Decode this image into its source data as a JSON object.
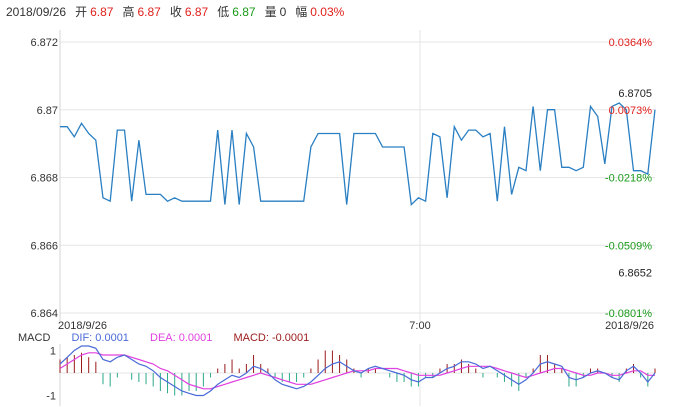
{
  "header": {
    "date": "2018/09/26",
    "fields": [
      {
        "label": "开",
        "value": "6.87",
        "color": "#e0201c"
      },
      {
        "label": "高",
        "value": "6.87",
        "color": "#e0201c"
      },
      {
        "label": "收",
        "value": "6.87",
        "color": "#e0201c"
      },
      {
        "label": "低",
        "value": "6.87",
        "color": "#1a9a1a"
      },
      {
        "label": "量",
        "value": "0",
        "color": "#333333"
      },
      {
        "label": "幅",
        "value": "0.03%",
        "color": "#e0201c"
      }
    ]
  },
  "colors": {
    "line": "#2a7fc2",
    "dif": "#4a6ad8",
    "dea": "#e040e0",
    "bar_up": "#9a1a1a",
    "bar_down": "#2aa88a",
    "grid": "#e6e6e6",
    "up": "#e0201c",
    "down": "#1a9a1a"
  },
  "chart_data": [
    {
      "type": "line",
      "title": "",
      "x_ticks": [
        "2018/9/26",
        "7:00",
        "2018/9/26"
      ],
      "y_ticks": [
        "6.872",
        "6.87",
        "6.868",
        "6.866",
        "6.864"
      ],
      "ylim": [
        6.864,
        6.872
      ],
      "right_ticks": [
        {
          "label": "0.0364%",
          "y": 6.872,
          "tone": "up"
        },
        {
          "label": "0.0073%",
          "y": 6.87,
          "tone": "up"
        },
        {
          "label": "-0.0218%",
          "y": 6.868,
          "tone": "down"
        },
        {
          "label": "-0.0509%",
          "y": 6.866,
          "tone": "down"
        },
        {
          "label": "-0.0801%",
          "y": 6.864,
          "tone": "down"
        }
      ],
      "markers": [
        {
          "label": "6.8705",
          "y": 6.8705
        },
        {
          "label": "6.8652",
          "y": 6.8652
        }
      ],
      "values": [
        6.8695,
        6.8695,
        6.8692,
        6.8696,
        6.8693,
        6.8691,
        6.8674,
        6.8673,
        6.8694,
        6.8694,
        6.8673,
        6.8691,
        6.8675,
        6.8675,
        6.8675,
        6.8673,
        6.8674,
        6.8673,
        6.8673,
        6.8673,
        6.8673,
        6.8673,
        6.8694,
        6.8672,
        6.8694,
        6.8672,
        6.8693,
        6.8689,
        6.8673,
        6.8673,
        6.8673,
        6.8673,
        6.8673,
        6.8673,
        6.8673,
        6.8689,
        6.8693,
        6.8693,
        6.8693,
        6.8693,
        6.8672,
        6.8693,
        6.8693,
        6.8693,
        6.8693,
        6.8689,
        6.8689,
        6.8689,
        6.8689,
        6.8672,
        6.8674,
        6.8673,
        6.8693,
        6.8692,
        6.8674,
        6.8695,
        6.8691,
        6.8694,
        6.8694,
        6.8692,
        6.8693,
        6.8673,
        6.8695,
        6.8675,
        6.8683,
        6.8682,
        6.8701,
        6.8682,
        6.87,
        6.87,
        6.8683,
        6.8683,
        6.8682,
        6.8683,
        6.8701,
        6.8698,
        6.8684,
        6.8701,
        6.8702,
        6.87,
        6.8682,
        6.8682,
        6.8681,
        6.87
      ]
    },
    {
      "type": "bar",
      "title": "MACD",
      "legend": {
        "dif": "DIF: 0.0001",
        "dea": "DEA: 0.0001",
        "macd": "MACD: -0.0001"
      },
      "y_ticks": [
        "1",
        "-1"
      ],
      "ylim": [
        -1.2,
        1.2
      ],
      "dif": [
        0.4,
        0.7,
        1.0,
        1.2,
        1.2,
        1.1,
        0.6,
        0.5,
        0.7,
        0.8,
        0.6,
        0.4,
        0.3,
        0.1,
        -0.2,
        -0.4,
        -0.6,
        -0.8,
        -0.9,
        -1.0,
        -1.0,
        -0.8,
        -0.5,
        -0.3,
        -0.1,
        -0.2,
        0.0,
        0.3,
        0.2,
        0.0,
        -0.3,
        -0.5,
        -0.6,
        -0.7,
        -0.6,
        -0.4,
        -0.1,
        0.2,
        0.4,
        0.5,
        0.3,
        0.1,
        0.0,
        0.2,
        0.3,
        0.2,
        0.1,
        0.0,
        -0.1,
        -0.3,
        -0.4,
        -0.2,
        -0.2,
        0.0,
        0.2,
        0.3,
        0.5,
        0.5,
        0.4,
        0.2,
        0.3,
        0.1,
        -0.1,
        -0.3,
        -0.5,
        -0.3,
        0.0,
        0.4,
        0.5,
        0.4,
        0.3,
        -0.2,
        -0.3,
        -0.2,
        0.0,
        0.1,
        0.0,
        -0.2,
        -0.3,
        0.1,
        0.3,
        0.0,
        -0.4,
        0.0
      ],
      "dea": [
        0.2,
        0.4,
        0.6,
        0.8,
        0.9,
        0.9,
        0.8,
        0.8,
        0.8,
        0.8,
        0.7,
        0.6,
        0.5,
        0.4,
        0.2,
        0.1,
        -0.1,
        -0.3,
        -0.5,
        -0.6,
        -0.7,
        -0.7,
        -0.6,
        -0.5,
        -0.4,
        -0.3,
        -0.2,
        -0.1,
        0.0,
        -0.1,
        -0.2,
        -0.3,
        -0.4,
        -0.5,
        -0.5,
        -0.5,
        -0.4,
        -0.3,
        -0.2,
        -0.1,
        0.0,
        0.1,
        0.1,
        0.1,
        0.2,
        0.2,
        0.2,
        0.2,
        0.1,
        0.0,
        -0.1,
        -0.1,
        -0.1,
        -0.1,
        0.0,
        0.1,
        0.2,
        0.3,
        0.3,
        0.3,
        0.3,
        0.2,
        0.1,
        0.0,
        -0.1,
        -0.2,
        -0.1,
        0.0,
        0.1,
        0.2,
        0.2,
        0.1,
        0.0,
        -0.1,
        -0.1,
        0.0,
        0.0,
        -0.1,
        -0.1,
        0.0,
        0.1,
        0.1,
        -0.1,
        -0.1
      ],
      "macd": [
        0.6,
        0.7,
        0.8,
        0.9,
        0.7,
        0.5,
        -0.5,
        -0.6,
        -0.2,
        0.0,
        -0.3,
        -0.4,
        -0.5,
        -0.6,
        -0.8,
        -0.9,
        -1.0,
        -1.0,
        -0.8,
        -0.8,
        -0.6,
        -0.2,
        0.2,
        0.4,
        0.6,
        0.2,
        0.4,
        0.8,
        0.4,
        0.2,
        -0.2,
        -0.4,
        -0.4,
        -0.4,
        -0.2,
        0.2,
        0.6,
        1.0,
        1.0,
        0.8,
        0.6,
        0.2,
        -0.2,
        0.2,
        0.2,
        0.0,
        -0.2,
        -0.4,
        -0.4,
        -0.6,
        -0.6,
        -0.2,
        -0.2,
        0.2,
        0.4,
        0.4,
        0.6,
        0.4,
        0.2,
        -0.2,
        0.0,
        -0.2,
        -0.4,
        -0.6,
        -0.8,
        -0.2,
        0.2,
        0.8,
        0.8,
        0.4,
        0.2,
        -0.6,
        -0.6,
        -0.2,
        0.2,
        0.2,
        0.0,
        -0.2,
        -0.4,
        0.2,
        0.4,
        -0.2,
        -0.6,
        0.2
      ]
    }
  ]
}
